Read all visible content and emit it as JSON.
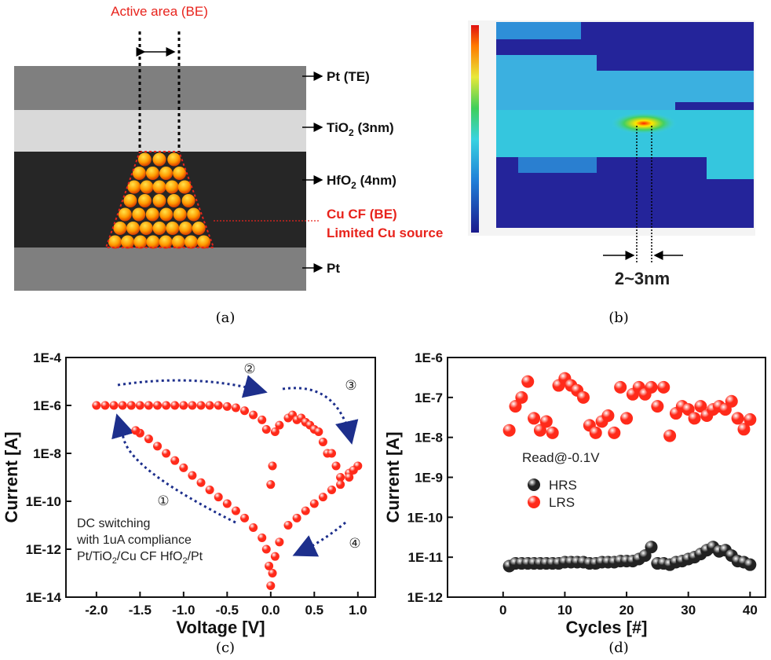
{
  "panel_a": {
    "header": "Active area (BE)",
    "layers": [
      {
        "label_parts": [
          "Pt (TE)"
        ]
      },
      {
        "label_parts": [
          "TiO",
          "2",
          " (3nm)"
        ]
      },
      {
        "label_parts": [
          "HfO",
          "2",
          " (4nm)"
        ]
      },
      {
        "label_parts": [
          "Pt"
        ]
      }
    ],
    "filament_labels": [
      "Cu CF (BE)",
      "Limited Cu source"
    ]
  },
  "panel_b": {
    "width_label": "2~3nm"
  },
  "captions": [
    "(a)",
    "(b)",
    "(c)",
    "(d)"
  ],
  "chart_data": [
    {
      "type": "scatter",
      "x_label": "Voltage [V]",
      "y_label": "Current [A]",
      "log_y": true,
      "xlim": [
        -2.35,
        1.2
      ],
      "ylim": [
        1e-14,
        0.0001
      ],
      "xticks": [
        {
          "value": -2,
          "label": "-2.0"
        },
        {
          "value": -1.5,
          "label": "-1.5"
        },
        {
          "value": -1,
          "label": "-1.0"
        },
        {
          "value": -0.5,
          "label": "-0.5"
        },
        {
          "value": 0,
          "label": "0.0"
        },
        {
          "value": 0.5,
          "label": "0.5"
        },
        {
          "value": 1,
          "label": "1.0"
        }
      ],
      "yticks": [
        {
          "value": 1e-14,
          "label": "1E-14"
        },
        {
          "value": 1e-12,
          "label": "1E-12"
        },
        {
          "value": 1e-10,
          "label": "1E-10"
        },
        {
          "value": 1e-08,
          "label": "1E-8"
        },
        {
          "value": 1e-06,
          "label": "1E-6"
        },
        {
          "value": 0.0001,
          "label": "1E-4"
        }
      ],
      "x": [
        -2.0,
        -1.9,
        -1.8,
        -1.7,
        -1.6,
        -1.5,
        -1.4,
        -1.3,
        -1.2,
        -1.1,
        -1.0,
        -0.9,
        -0.8,
        -0.7,
        -0.6,
        -0.5,
        -0.4,
        -0.3,
        -0.2,
        -0.1,
        -0.05,
        0,
        0.02,
        0.05,
        0.1,
        0.2,
        0.25,
        0.3,
        0.35,
        0.4,
        0.45,
        0.5,
        0.55,
        0.6,
        0.65,
        0.7,
        0.75,
        0.8,
        0.9,
        1.0,
        0.95,
        0.9,
        0.8,
        0.7,
        0.6,
        0.5,
        0.4,
        0.3,
        0.2,
        0.1,
        0.05,
        0.02,
        0,
        -0.02,
        -0.05,
        -0.1,
        -0.2,
        -0.3,
        -0.4,
        -0.5,
        -0.6,
        -0.7,
        -0.8,
        -0.9,
        -1.0,
        -1.1,
        -1.2,
        -1.3,
        -1.4,
        -1.5,
        -1.55,
        -1.6
      ],
      "series": [
        {
          "color": "#ff2a1a",
          "values": [
            1e-06,
            1e-06,
            1e-06,
            1e-06,
            1e-06,
            1e-06,
            1e-06,
            1e-06,
            1e-06,
            1e-06,
            1e-06,
            1e-06,
            1e-06,
            1e-06,
            1e-06,
            9e-07,
            8e-07,
            6e-07,
            4e-07,
            2.5e-07,
            1e-07,
            5e-10,
            3e-09,
            8e-08,
            1.5e-07,
            3e-07,
            4e-07,
            2.5e-07,
            3e-07,
            2e-07,
            1.5e-07,
            1e-07,
            8e-08,
            3e-08,
            1e-08,
            1e-08,
            3e-09,
            1e-09,
            1.5e-09,
            3e-09,
            2e-09,
            1e-09,
            5e-10,
            3e-10,
            1.5e-10,
            8e-11,
            4e-11,
            2e-11,
            1e-11,
            2e-12,
            5e-13,
            1e-13,
            3e-14,
            2e-13,
            1e-12,
            3e-12,
            8e-12,
            2e-11,
            4e-11,
            8e-11,
            1.5e-10,
            3e-10,
            6e-10,
            1.2e-09,
            2.5e-09,
            5e-09,
            1e-08,
            2e-08,
            4e-08,
            7e-08,
            9e-08,
            1e-06
          ]
        }
      ],
      "annotations": [
        "①",
        "②",
        "③",
        "④"
      ],
      "note_lines": [
        "DC switching",
        "with 1uA compliance"
      ],
      "note_formula": [
        "Pt/TiO",
        "2",
        "/Cu CF HfO",
        "2",
        "/Pt"
      ]
    },
    {
      "type": "scatter",
      "x_label": "Cycles [#]",
      "y_label": "Current [A]",
      "log_y": true,
      "xlim": [
        -9,
        42.5
      ],
      "ylim": [
        1e-12,
        1e-06
      ],
      "xticks": [
        0,
        10,
        20,
        30,
        40
      ],
      "yticks": [
        {
          "value": 1e-12,
          "label": "1E-12"
        },
        {
          "value": 1e-11,
          "label": "1E-11"
        },
        {
          "value": 1e-10,
          "label": "1E-10"
        },
        {
          "value": 1e-09,
          "label": "1E-9"
        },
        {
          "value": 1e-08,
          "label": "1E-8"
        },
        {
          "value": 1e-07,
          "label": "1E-7"
        },
        {
          "value": 1e-06,
          "label": "1E-6"
        }
      ],
      "x": [
        1,
        2,
        3,
        4,
        5,
        6,
        7,
        8,
        9,
        10,
        11,
        12,
        13,
        14,
        15,
        16,
        17,
        18,
        19,
        20,
        21,
        22,
        23,
        24,
        25,
        26,
        27,
        28,
        29,
        30,
        31,
        32,
        33,
        34,
        35,
        36,
        37,
        38,
        39,
        40
      ],
      "series": [
        {
          "name": "HRS",
          "color": "#222222",
          "values": [
            6e-12,
            7e-12,
            7e-12,
            7e-12,
            7e-12,
            7e-12,
            7e-12,
            7e-12,
            7e-12,
            7.5e-12,
            7.5e-12,
            7.5e-12,
            7.5e-12,
            7e-12,
            7e-12,
            7.5e-12,
            7.5e-12,
            7.5e-12,
            8e-12,
            8e-12,
            8e-12,
            9e-12,
            1.1e-11,
            1.8e-11,
            7e-12,
            7e-12,
            6.5e-12,
            7.5e-12,
            8e-12,
            9e-12,
            1e-11,
            1.2e-11,
            1.5e-11,
            1.8e-11,
            1.4e-11,
            1.5e-11,
            1.1e-11,
            8e-12,
            7.5e-12,
            6.5e-12
          ]
        },
        {
          "name": "LRS",
          "color": "#ff2a1a",
          "values": [
            1.5e-08,
            6e-08,
            1e-07,
            2.5e-07,
            3e-08,
            1.5e-08,
            2.5e-08,
            1.3e-08,
            2e-07,
            3e-07,
            2e-07,
            1.5e-07,
            1e-07,
            2e-08,
            1.3e-08,
            2.5e-08,
            3.5e-08,
            1.3e-08,
            1.8e-07,
            3e-08,
            1.2e-07,
            1.8e-07,
            1.2e-07,
            1.8e-07,
            6e-08,
            1.8e-07,
            1.1e-08,
            4e-08,
            6e-08,
            5e-08,
            3e-08,
            6e-08,
            3.5e-08,
            5e-08,
            6e-08,
            5e-08,
            8e-08,
            3e-08,
            1.6e-08,
            2.8e-08
          ]
        }
      ],
      "legend": "center-left",
      "annotation": "Read@-0.1V"
    }
  ]
}
